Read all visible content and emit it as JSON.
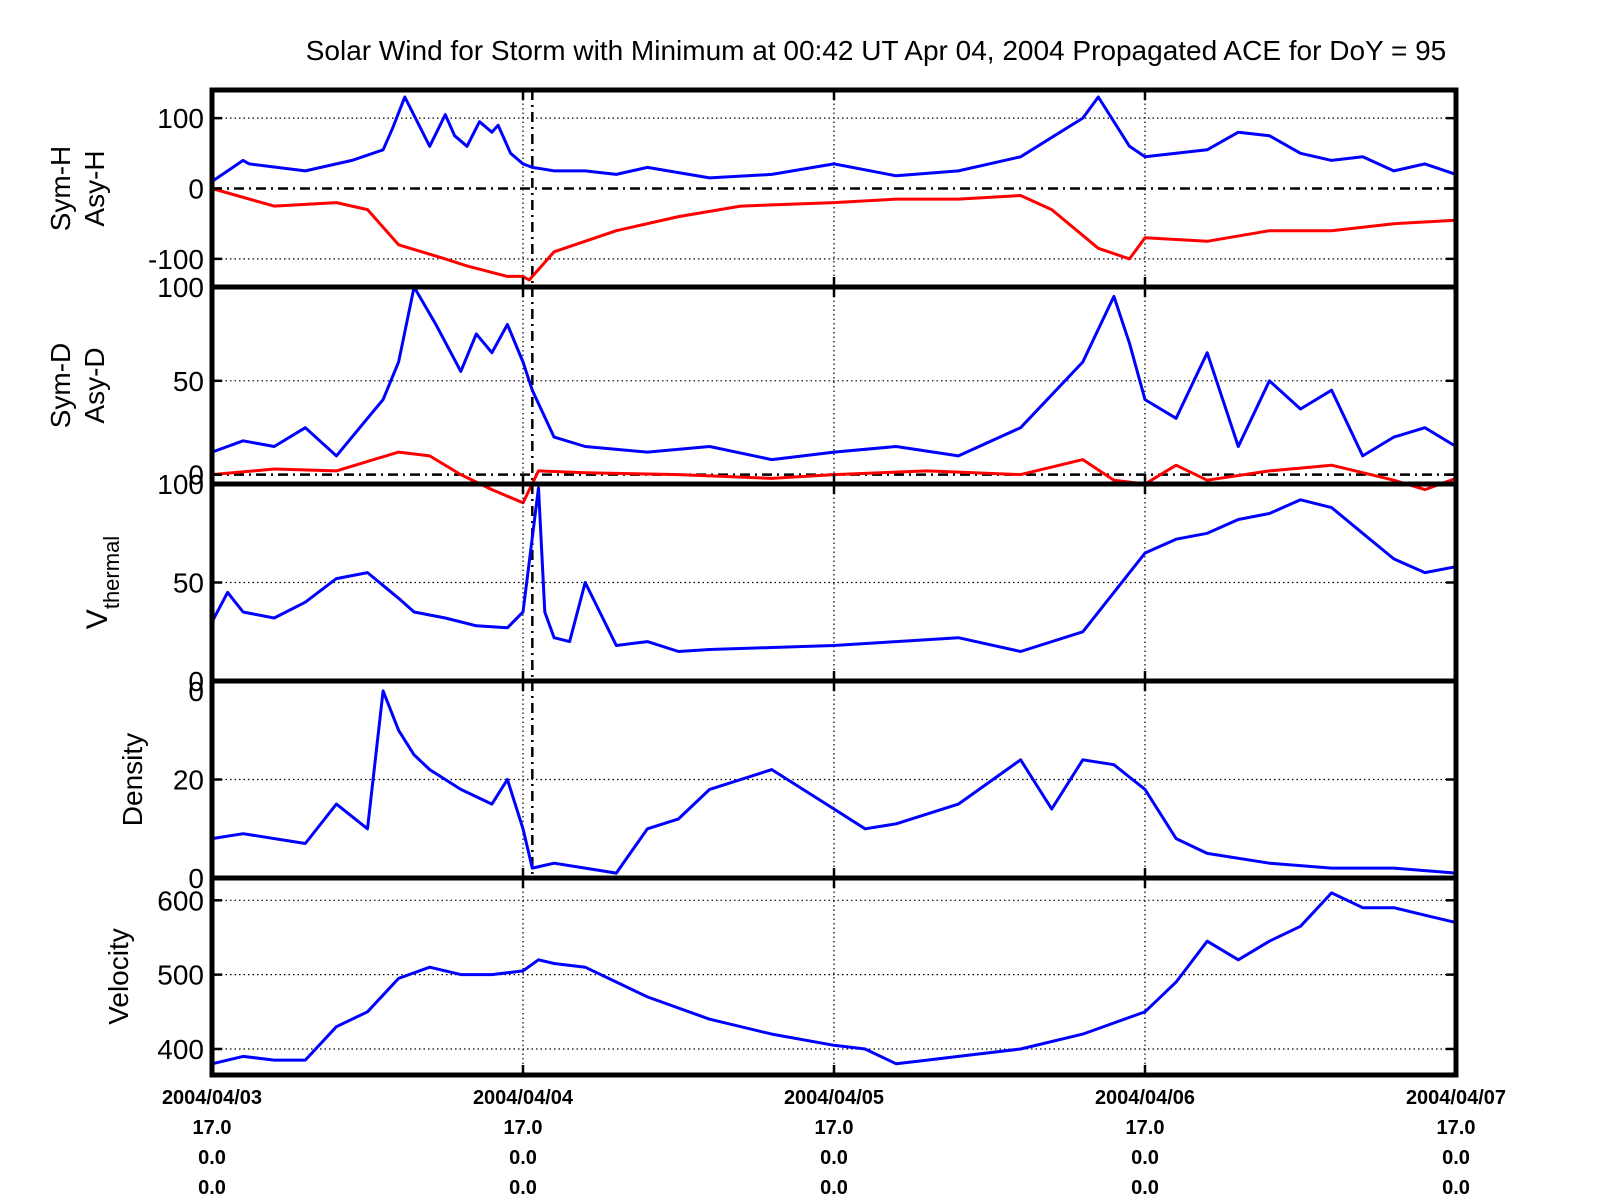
{
  "chart_data": {
    "type": "line",
    "title": "Solar Wind for Storm with Minimum at 00:42 UT Apr 04, 2004  Propagated ACE for DoY = 95",
    "x_ticks": [
      {
        "x": 0,
        "lines": [
          "2004/04/03",
          "17.0",
          "0.0",
          "0.0"
        ]
      },
      {
        "x": 1,
        "lines": [
          "2004/04/04",
          "17.0",
          "0.0",
          "0.0"
        ]
      },
      {
        "x": 2,
        "lines": [
          "2004/04/05",
          "17.0",
          "0.0",
          "0.0"
        ]
      },
      {
        "x": 3,
        "lines": [
          "2004/04/06",
          "17.0",
          "0.0",
          "0.0"
        ]
      },
      {
        "x": 4,
        "lines": [
          "2004/04/07",
          "17.0",
          "0.0",
          "0.0"
        ]
      }
    ],
    "xlim": [
      0,
      4
    ],
    "storm_minimum_x": 1.03,
    "colors": {
      "series_blue": "#0000ff",
      "series_red": "#ff0000",
      "zero_line": "#000000",
      "grid": "#000000"
    },
    "panels": [
      {
        "id": "sym-h",
        "ylabel": [
          "Sym-H",
          "Asy-H"
        ],
        "ylim": [
          -140,
          140
        ],
        "yticks": [
          100,
          0,
          -100
        ],
        "zero_line": true,
        "minimum_marker": true,
        "grid": "dotted",
        "series": [
          {
            "color": "blue",
            "x": [
              0,
              0.1,
              0.12,
              0.3,
              0.45,
              0.55,
              0.58,
              0.62,
              0.7,
              0.75,
              0.78,
              0.82,
              0.86,
              0.9,
              0.92,
              0.96,
              1.0,
              1.03,
              1.06,
              1.1,
              1.2,
              1.3,
              1.4,
              1.6,
              1.8,
              2.0,
              2.2,
              2.4,
              2.6,
              2.8,
              2.85,
              2.95,
              3.0,
              3.1,
              3.2,
              3.3,
              3.4,
              3.5,
              3.6,
              3.7,
              3.8,
              3.9,
              4.0
            ],
            "y": [
              10,
              40,
              35,
              25,
              40,
              55,
              85,
              130,
              60,
              105,
              75,
              60,
              95,
              80,
              90,
              50,
              35,
              30,
              28,
              25,
              25,
              20,
              30,
              15,
              20,
              35,
              18,
              25,
              45,
              100,
              130,
              60,
              45,
              50,
              55,
              80,
              75,
              50,
              40,
              45,
              25,
              35,
              20
            ]
          },
          {
            "color": "red",
            "x": [
              0,
              0.2,
              0.4,
              0.5,
              0.6,
              0.75,
              0.82,
              0.95,
              1.0,
              1.02,
              1.1,
              1.3,
              1.5,
              1.7,
              2.0,
              2.2,
              2.4,
              2.6,
              2.7,
              2.85,
              2.95,
              3.0,
              3.2,
              3.4,
              3.6,
              3.8,
              4.0
            ],
            "y": [
              0,
              -25,
              -20,
              -30,
              -80,
              -100,
              -110,
              -125,
              -125,
              -130,
              -90,
              -60,
              -40,
              -25,
              -20,
              -15,
              -15,
              -10,
              -30,
              -85,
              -100,
              -70,
              -75,
              -60,
              -60,
              -50,
              -45
            ]
          }
        ]
      },
      {
        "id": "sym-d",
        "ylabel": [
          "Sym-D",
          "Asy-D"
        ],
        "ylim": [
          -5,
          100
        ],
        "yticks": [
          100,
          50,
          0
        ],
        "zero_line": true,
        "minimum_marker": true,
        "grid": "dotted",
        "series": [
          {
            "color": "blue",
            "x": [
              0,
              0.1,
              0.2,
              0.3,
              0.4,
              0.5,
              0.55,
              0.6,
              0.65,
              0.72,
              0.8,
              0.85,
              0.9,
              0.95,
              1.0,
              1.03,
              1.1,
              1.2,
              1.4,
              1.6,
              1.8,
              2.0,
              2.2,
              2.4,
              2.6,
              2.8,
              2.9,
              2.95,
              3.0,
              3.1,
              3.2,
              3.3,
              3.4,
              3.5,
              3.6,
              3.7,
              3.8,
              3.9,
              4.0
            ],
            "y": [
              12,
              18,
              15,
              25,
              10,
              30,
              40,
              60,
              100,
              80,
              55,
              75,
              65,
              80,
              60,
              45,
              20,
              15,
              12,
              15,
              8,
              12,
              15,
              10,
              25,
              60,
              95,
              70,
              40,
              30,
              65,
              15,
              50,
              35,
              45,
              10,
              20,
              25,
              15
            ]
          },
          {
            "color": "red",
            "x": [
              0,
              0.2,
              0.4,
              0.6,
              0.7,
              0.8,
              0.9,
              1.0,
              1.05,
              1.2,
              1.5,
              1.8,
              2.0,
              2.3,
              2.6,
              2.8,
              2.9,
              3.0,
              3.1,
              3.2,
              3.4,
              3.6,
              3.8,
              3.9,
              4.0
            ],
            "y": [
              0,
              3,
              2,
              12,
              10,
              0,
              -8,
              -15,
              2,
              1,
              0,
              -2,
              0,
              2,
              0,
              8,
              -3,
              -5,
              5,
              -3,
              2,
              5,
              -3,
              -8,
              -2
            ]
          }
        ]
      },
      {
        "id": "v-thermal",
        "ylabel": [
          "V",
          "thermal"
        ],
        "ylim": [
          0,
          100
        ],
        "yticks": [
          100,
          50,
          0
        ],
        "zero_line": false,
        "minimum_marker": true,
        "grid": "dotted",
        "series": [
          {
            "color": "blue",
            "x": [
              0,
              0.05,
              0.1,
              0.2,
              0.3,
              0.4,
              0.5,
              0.6,
              0.65,
              0.75,
              0.85,
              0.95,
              1.0,
              1.05,
              1.07,
              1.1,
              1.15,
              1.2,
              1.3,
              1.4,
              1.5,
              1.6,
              1.8,
              2.0,
              2.2,
              2.4,
              2.6,
              2.8,
              2.9,
              3.0,
              3.1,
              3.2,
              3.3,
              3.4,
              3.5,
              3.6,
              3.7,
              3.8,
              3.9,
              4.0
            ],
            "y": [
              30,
              45,
              35,
              32,
              40,
              52,
              55,
              42,
              35,
              32,
              28,
              27,
              35,
              98,
              35,
              22,
              20,
              50,
              18,
              20,
              15,
              16,
              17,
              18,
              20,
              22,
              15,
              25,
              45,
              65,
              72,
              75,
              82,
              85,
              92,
              88,
              75,
              62,
              55,
              58
            ]
          }
        ]
      },
      {
        "id": "density",
        "ylabel": [
          "Density"
        ],
        "ylim": [
          0,
          40
        ],
        "yticks": [
          20,
          0
        ],
        "top_label": "0",
        "zero_line": false,
        "minimum_marker": true,
        "grid": "dotted",
        "series": [
          {
            "color": "blue",
            "x": [
              0,
              0.1,
              0.3,
              0.4,
              0.5,
              0.55,
              0.6,
              0.65,
              0.7,
              0.8,
              0.9,
              0.95,
              1.0,
              1.03,
              1.1,
              1.2,
              1.3,
              1.4,
              1.5,
              1.6,
              1.8,
              2.0,
              2.1,
              2.2,
              2.4,
              2.6,
              2.7,
              2.8,
              2.9,
              3.0,
              3.1,
              3.2,
              3.4,
              3.6,
              3.8,
              4.0
            ],
            "y": [
              8,
              9,
              7,
              15,
              10,
              38,
              30,
              25,
              22,
              18,
              15,
              20,
              10,
              2,
              3,
              2,
              1,
              10,
              12,
              18,
              22,
              14,
              10,
              11,
              15,
              24,
              14,
              24,
              23,
              18,
              8,
              5,
              3,
              2,
              2,
              1
            ]
          }
        ]
      },
      {
        "id": "velocity",
        "ylabel": [
          "Velocity"
        ],
        "ylim": [
          365,
          630
        ],
        "yticks": [
          600,
          500,
          400
        ],
        "zero_line": false,
        "minimum_marker": false,
        "grid": "dotted",
        "series": [
          {
            "color": "blue",
            "x": [
              0,
              0.1,
              0.2,
              0.3,
              0.4,
              0.5,
              0.6,
              0.7,
              0.8,
              0.9,
              1.0,
              1.05,
              1.1,
              1.2,
              1.4,
              1.6,
              1.8,
              2.0,
              2.1,
              2.2,
              2.3,
              2.4,
              2.6,
              2.8,
              3.0,
              3.1,
              3.2,
              3.3,
              3.4,
              3.5,
              3.6,
              3.7,
              3.8,
              3.9,
              4.0
            ],
            "y": [
              380,
              390,
              385,
              385,
              430,
              450,
              495,
              510,
              500,
              500,
              505,
              520,
              515,
              510,
              470,
              440,
              420,
              405,
              400,
              380,
              385,
              390,
              400,
              420,
              450,
              490,
              545,
              520,
              545,
              565,
              610,
              590,
              590,
              580,
              570
            ]
          }
        ]
      }
    ]
  }
}
